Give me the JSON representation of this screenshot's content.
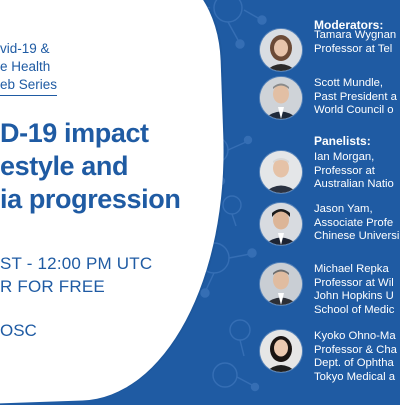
{
  "left": {
    "series_lines": [
      "vid-19 &",
      "e Health",
      "eb Series"
    ],
    "headline_lines": [
      "D-19 impact",
      "estyle and",
      "ia progression"
    ],
    "datetime_lines": [
      "ST - 12:00 PM UTC",
      "R FOR FREE"
    ],
    "org": "OSC"
  },
  "moderators": {
    "heading": "Moderators:",
    "people": [
      {
        "lines": [
          "Tamara Wygnan",
          "Professor at Tel "
        ]
      },
      {
        "lines": [
          "Scott Mundle,",
          "Past President a",
          "World Council o"
        ]
      }
    ]
  },
  "panelists": {
    "heading": "Panelists:",
    "people": [
      {
        "lines": [
          "Ian Morgan,",
          "Professor at",
          "Australian Natio"
        ]
      },
      {
        "lines": [
          "Jason Yam,",
          "Associate Profe",
          "Chinese Universi"
        ]
      },
      {
        "lines": [
          "Michael Repka",
          "Professor at Wil",
          "John Hopkins U",
          "School of Medic"
        ]
      },
      {
        "lines": [
          "Kyoko Ohno-Ma",
          "Professor & Cha",
          "Dept. of Ophtha",
          "Tokyo Medical a"
        ]
      }
    ]
  },
  "colors": {
    "background": "#1f5ba3",
    "blob": "#ffffff",
    "accent_text": "#1f5ba3"
  }
}
